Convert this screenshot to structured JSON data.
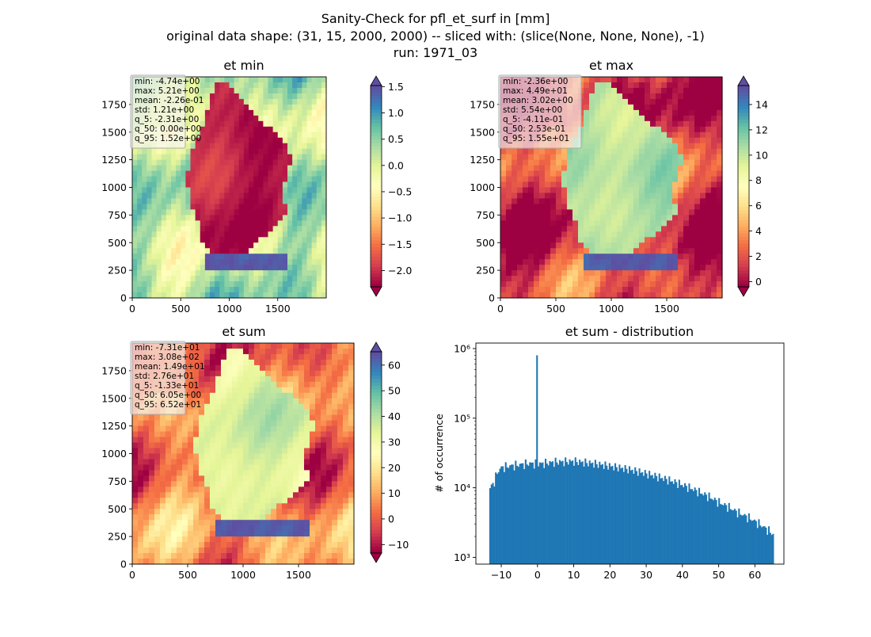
{
  "figure": {
    "title_lines": [
      "Sanity-Check for pfl_et_surf in [mm]",
      "original data shape: (31, 15, 2000, 2000) -- sliced with: (slice(None, None, None), -1)",
      "run: 1971_03"
    ]
  },
  "colormap": {
    "name": "Spectral",
    "stops": [
      "#9e0142",
      "#d53e4f",
      "#f46d43",
      "#fdae61",
      "#fee08b",
      "#ffffbf",
      "#e6f598",
      "#abdda4",
      "#66c2a5",
      "#3288bd",
      "#5e4fa2"
    ]
  },
  "panels": [
    {
      "title": "et min",
      "stats": [
        "min: -4.74e+00",
        "max: 5.21e+00",
        "mean: -2.26e-01",
        "std: 1.21e+00",
        "q_5: -2.31e+00",
        "q_50: 0.00e+00",
        "q_95: 1.52e+00"
      ],
      "xticks": [
        "0",
        "500",
        "1000",
        "1500"
      ],
      "yticks": [
        "0",
        "250",
        "500",
        "750",
        "1000",
        "1250",
        "1500",
        "1750"
      ],
      "colorbar": {
        "vmin": -2.31,
        "vmax": 1.52,
        "ticks": [
          -2.0,
          -1.5,
          -1.0,
          -0.5,
          0.0,
          0.5,
          1.0,
          1.5
        ],
        "tick_labels": [
          "−2.0",
          "−1.5",
          "−1.0",
          "−0.5",
          "0.0",
          "0.5",
          "1.0",
          "1.5"
        ]
      },
      "land_value": 0.2,
      "germany_value": -2.15,
      "northsea_value": 0.2
    },
    {
      "title": "et max",
      "stats": [
        "min: -2.36e+00",
        "max: 4.49e+01",
        "mean: 3.02e+00",
        "std: 5.54e+00",
        "q_5: -4.11e-01",
        "q_50: 2.53e-01",
        "q_95: 1.55e+01"
      ],
      "xticks": [
        "0",
        "500",
        "1000",
        "1500"
      ],
      "yticks": [
        "0",
        "250",
        "500",
        "750",
        "1000",
        "1250",
        "1500",
        "1750"
      ],
      "colorbar": {
        "vmin": -0.411,
        "vmax": 15.5,
        "ticks": [
          0,
          2,
          4,
          6,
          8,
          10,
          12,
          14
        ],
        "tick_labels": [
          "0",
          "2",
          "4",
          "6",
          "8",
          "10",
          "12",
          "14"
        ]
      },
      "land_value": 1.2,
      "germany_value": 10.5,
      "northsea_value": 1.0
    },
    {
      "title": "et sum",
      "stats": [
        "min: -7.31e+01",
        "max: 3.08e+02",
        "mean: 1.49e+01",
        "std: 2.76e+01",
        "q_5: -1.33e+01",
        "q_50: 6.05e+00",
        "q_95: 6.52e+01"
      ],
      "xticks": [
        "0",
        "500",
        "1000",
        "1500"
      ],
      "yticks": [
        "0",
        "250",
        "500",
        "750",
        "1000",
        "1250",
        "1500",
        "1750"
      ],
      "colorbar": {
        "vmin": -13.3,
        "vmax": 65.2,
        "ticks": [
          -10,
          0,
          10,
          20,
          30,
          40,
          50,
          60
        ],
        "tick_labels": [
          "−10",
          "0",
          "10",
          "20",
          "30",
          "40",
          "50",
          "60"
        ]
      },
      "land_value": 5.0,
      "germany_value": 35.0,
      "northsea_value": 2.0
    }
  ],
  "chart_data": {
    "type": "bar",
    "title": "et sum - distribution",
    "ylabel": "# of occurrence",
    "xlabel": "",
    "yscale": "log",
    "ylim": [
      800,
      1200000
    ],
    "xlim": [
      -17,
      68
    ],
    "xticks": [
      -10,
      0,
      10,
      20,
      30,
      40,
      50,
      60
    ],
    "xtick_labels": [
      "−10",
      "0",
      "10",
      "20",
      "30",
      "40",
      "50",
      "60"
    ],
    "ytick_labels": [
      "10³",
      "10⁴",
      "10⁵",
      "10⁶"
    ],
    "color": "#1f77b4",
    "bin_range": [
      -13.3,
      65.2
    ],
    "bins": 200,
    "spike": {
      "x": 0,
      "count": 800000
    },
    "profile": [
      [
        -13.3,
        9500
      ],
      [
        -12,
        12000
      ],
      [
        -11,
        17000
      ],
      [
        -10,
        19500
      ],
      [
        -8,
        20500
      ],
      [
        -5,
        21500
      ],
      [
        -2,
        22500
      ],
      [
        0,
        22000
      ],
      [
        5,
        23500
      ],
      [
        10,
        24000
      ],
      [
        15,
        22500
      ],
      [
        20,
        20500
      ],
      [
        25,
        18500
      ],
      [
        30,
        16000
      ],
      [
        35,
        13500
      ],
      [
        40,
        11000
      ],
      [
        45,
        8500
      ],
      [
        50,
        6200
      ],
      [
        55,
        4500
      ],
      [
        60,
        3300
      ],
      [
        63,
        2600
      ],
      [
        65.2,
        2100
      ]
    ]
  }
}
